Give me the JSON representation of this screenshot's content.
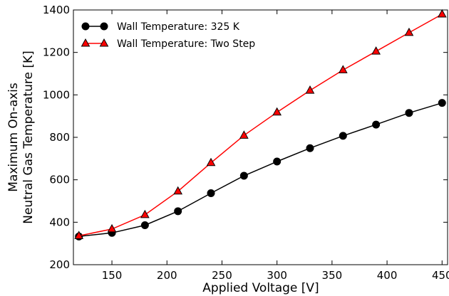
{
  "chart_data": {
    "type": "line",
    "xlabel": "Applied Voltage [V]",
    "ylabel_line1": "Maximum On-axis",
    "ylabel_line2": "Neutral Gas Temperature [K]",
    "xlim": [
      115,
      455
    ],
    "ylim": [
      200,
      1400
    ],
    "xticks": [
      150,
      200,
      250,
      300,
      350,
      400,
      450
    ],
    "yticks": [
      200,
      400,
      600,
      800,
      1000,
      1200,
      1400
    ],
    "grid": false,
    "legend_position": "top-left",
    "x": [
      120,
      150,
      180,
      210,
      240,
      270,
      300,
      330,
      360,
      390,
      420,
      450
    ],
    "series": [
      {
        "name": "Wall Temperature: 325 K",
        "color": "#000000",
        "marker": "circle",
        "values": [
          333,
          350,
          386,
          452,
          537,
          619,
          686,
          749,
          807,
          860,
          915,
          962
        ]
      },
      {
        "name": "Wall Temperature: Two Step",
        "color": "#ff0000",
        "marker": "triangle",
        "values": [
          336,
          368,
          435,
          546,
          680,
          809,
          918,
          1021,
          1117,
          1205,
          1293,
          1380
        ]
      }
    ]
  }
}
